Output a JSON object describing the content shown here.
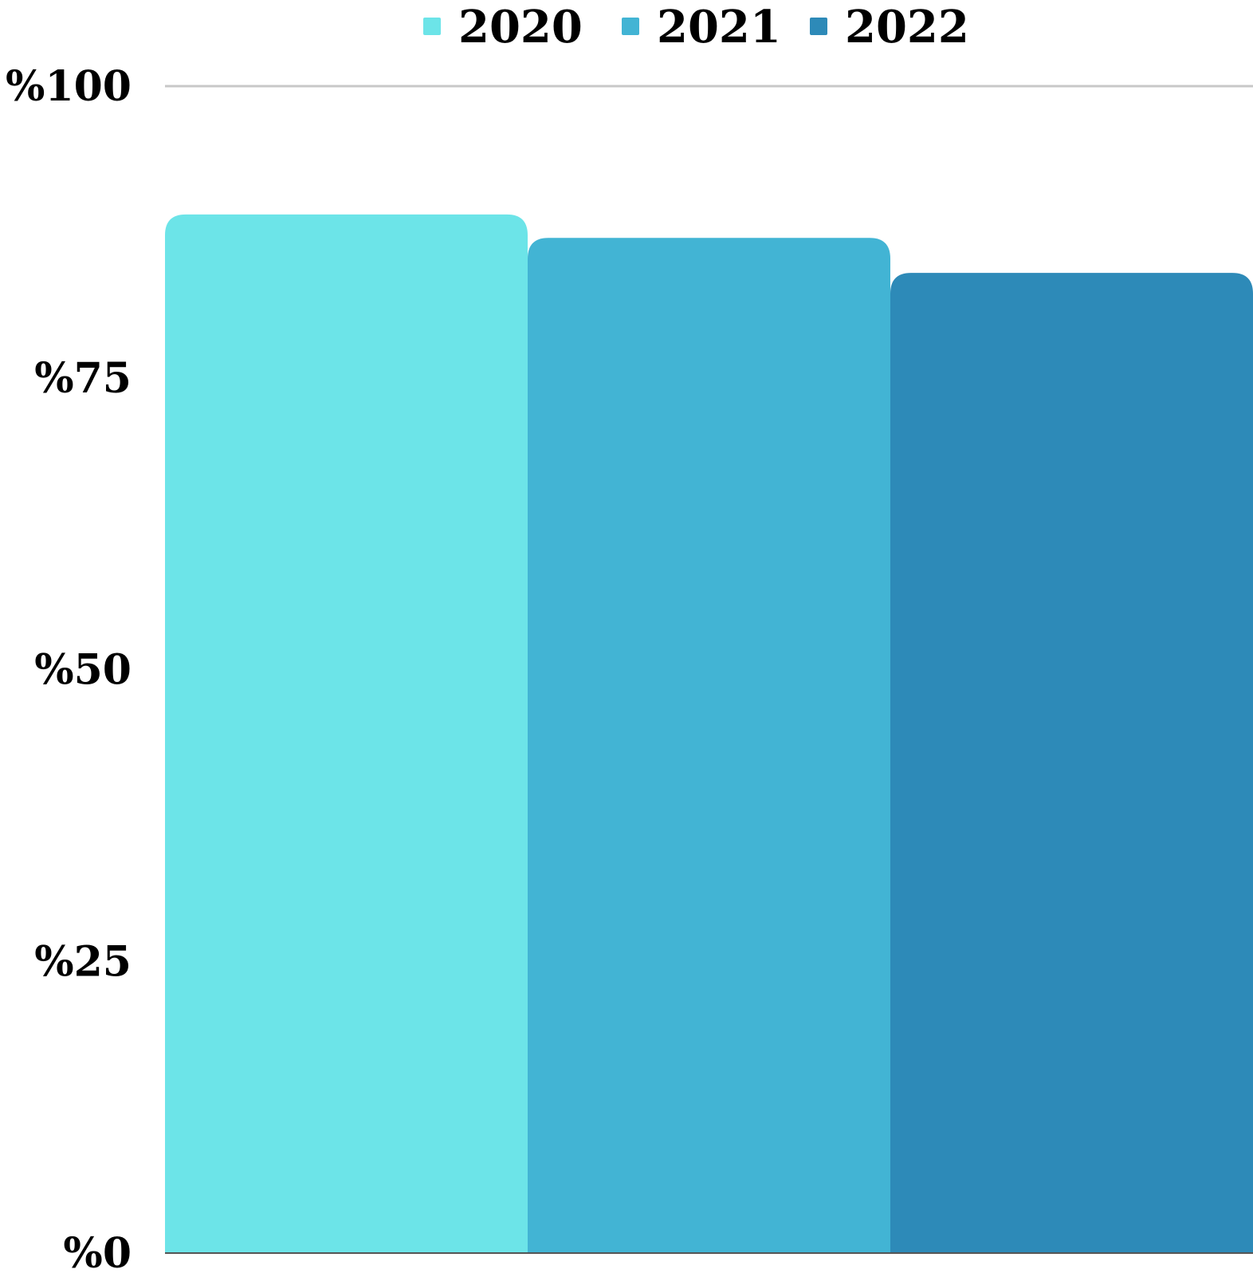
{
  "chart_data": {
    "type": "bar",
    "series": [
      {
        "name": "2020",
        "value": 89,
        "color": "#6ce4e8"
      },
      {
        "name": "2021",
        "value": 87,
        "color": "#42b4d4"
      },
      {
        "name": "2022",
        "value": 84,
        "color": "#2d8ab8"
      }
    ],
    "y_ticks": [
      "%0",
      "%25",
      "%50",
      "%75",
      "%100"
    ],
    "ylim": [
      0,
      100
    ],
    "legend_position": "top-center",
    "grid": "top gridline only"
  }
}
